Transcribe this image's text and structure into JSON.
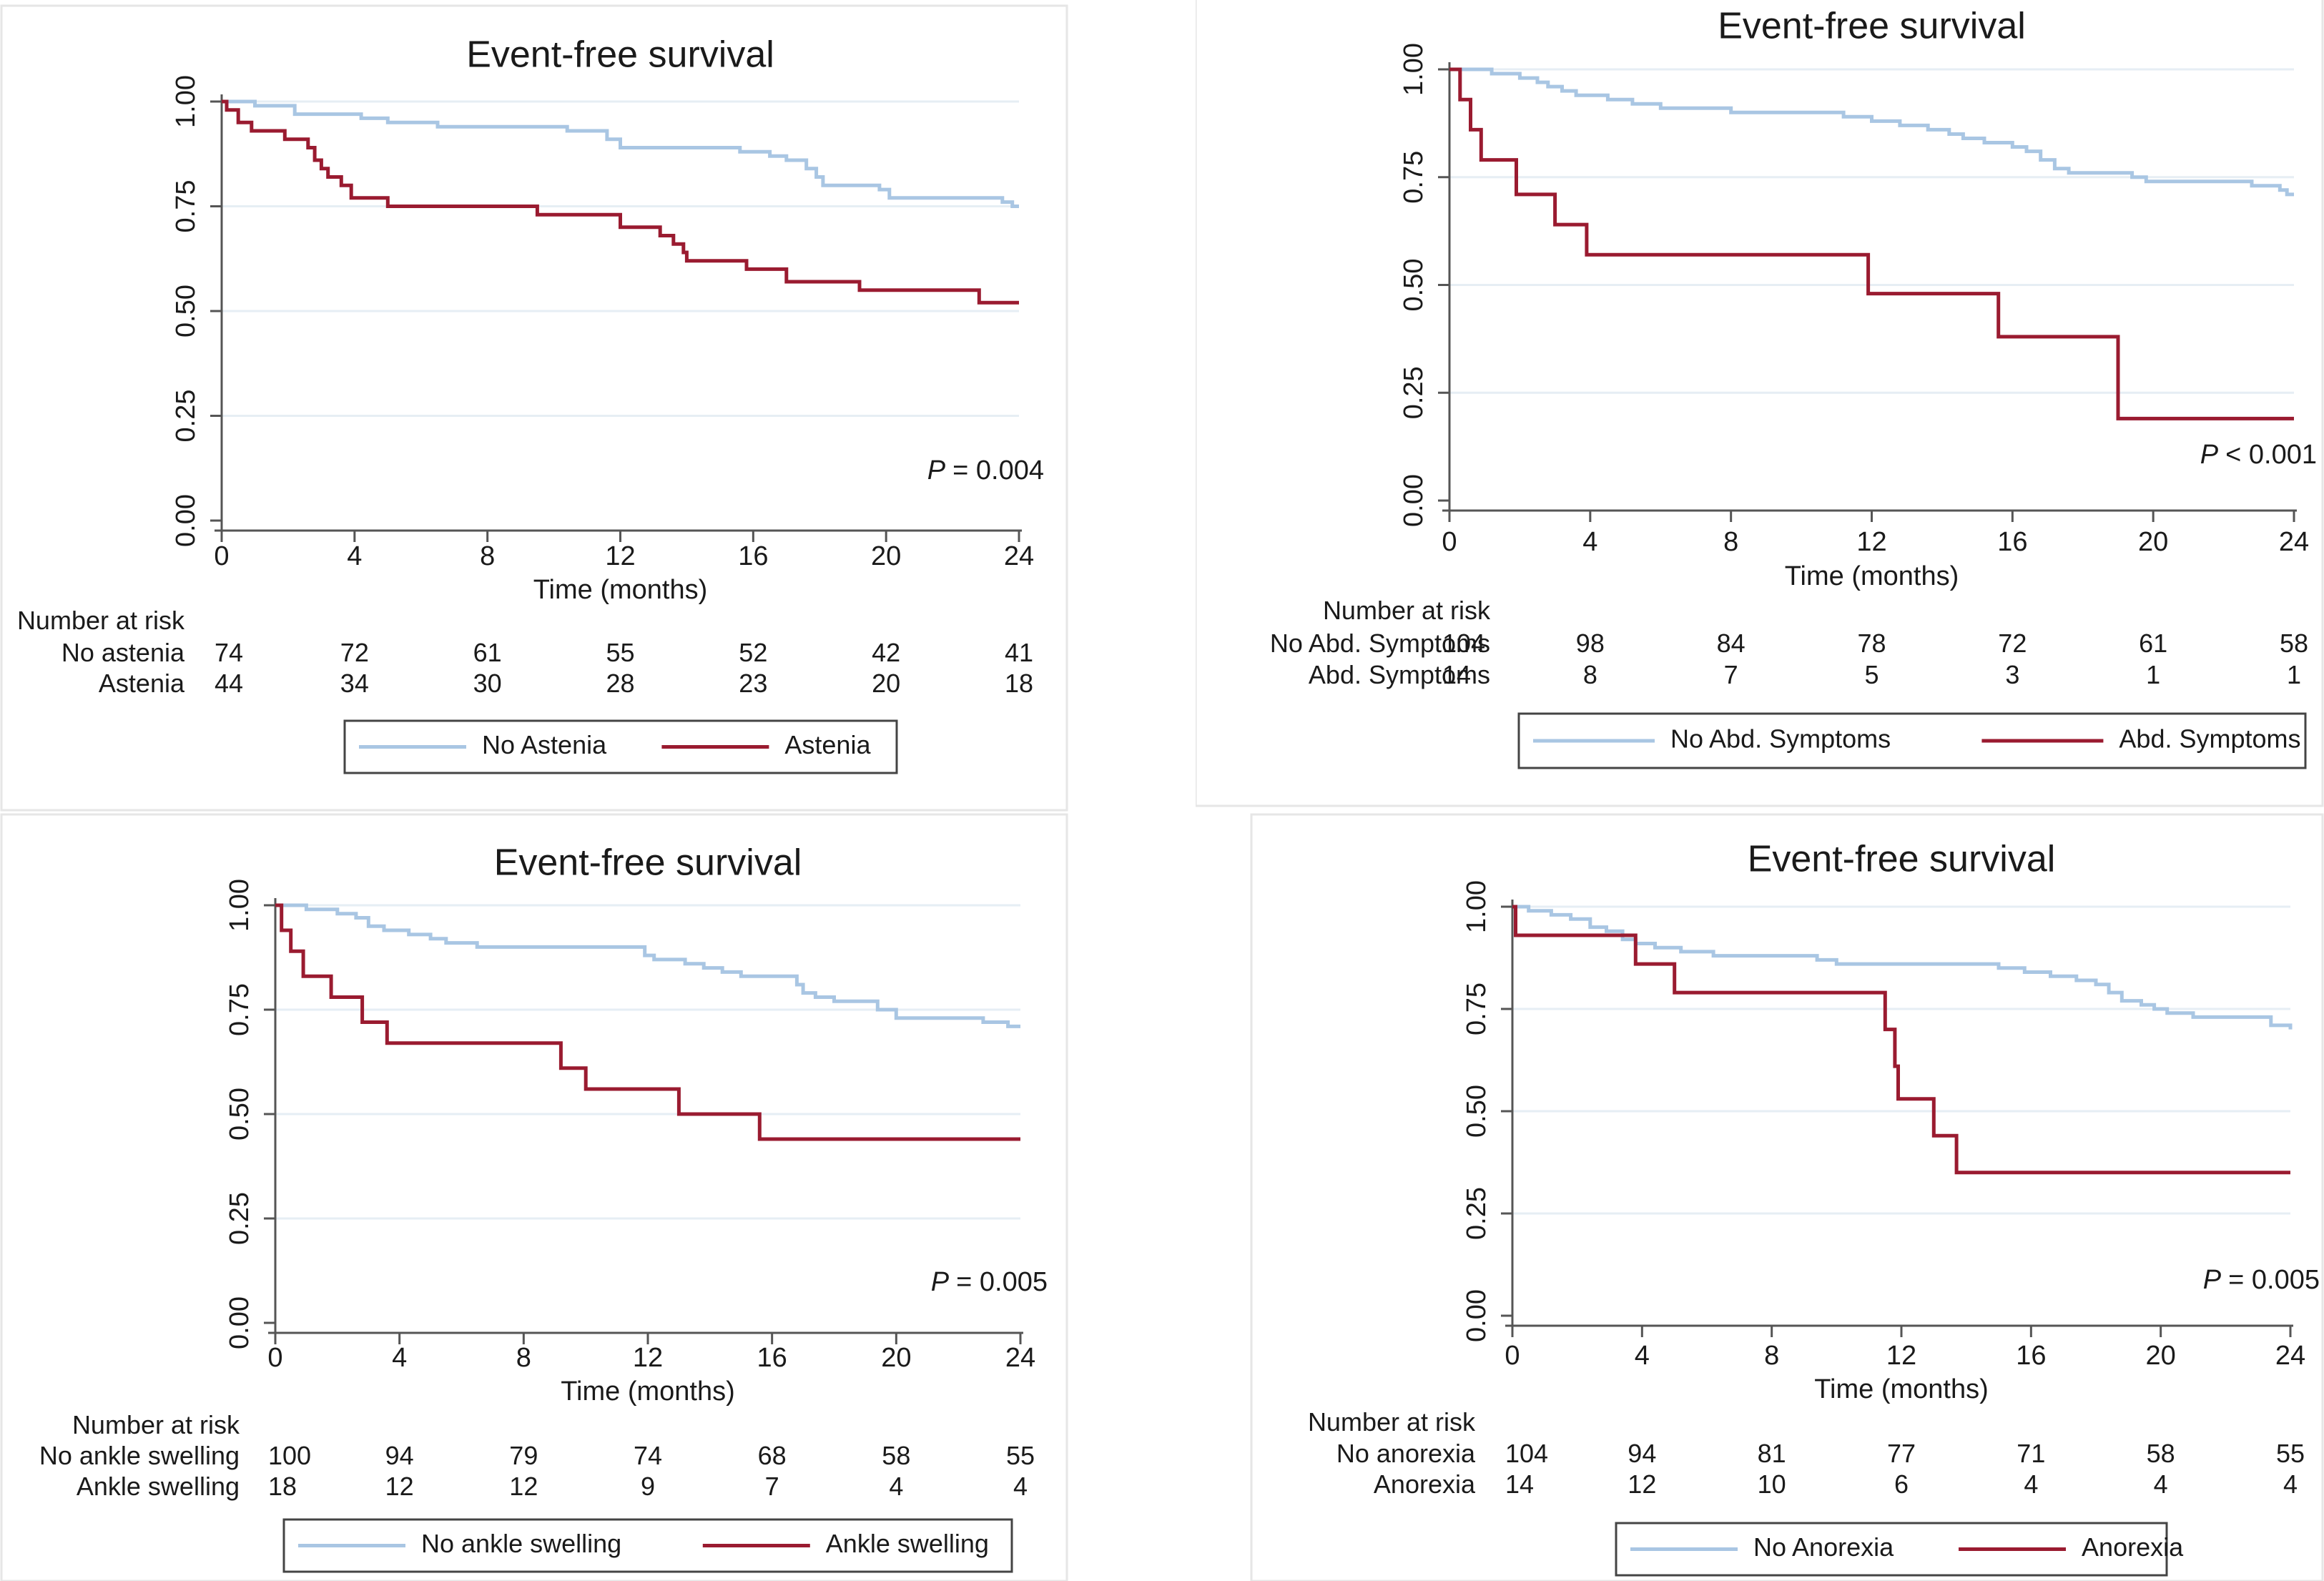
{
  "colors": {
    "no_group": "#A9C6E3",
    "group": "#9A1B30",
    "grid": "#E6EEF4",
    "axis": "#555555",
    "text": "#1a1a1a"
  },
  "chart_data": [
    {
      "type": "line",
      "title": "Event-free survival",
      "xlabel": "Time (months)",
      "ylabel": "",
      "xlim": [
        0,
        24
      ],
      "ylim": [
        0,
        1
      ],
      "xticks": [
        "0",
        "4",
        "8",
        "12",
        "16",
        "20",
        "24"
      ],
      "yticks": [
        "0.00",
        "0.25",
        "0.50",
        "0.75",
        "1.00"
      ],
      "p_symbol": "P",
      "p_rest": "= 0.004",
      "risk_header": "Number at risk",
      "series": [
        {
          "name": "No Astenia",
          "risk_label": "No astenia",
          "color_key": "no_group",
          "risk": [
            "74",
            "72",
            "61",
            "55",
            "52",
            "42",
            "41"
          ],
          "points": [
            [
              0,
              1.0
            ],
            [
              1.0,
              0.99
            ],
            [
              2.2,
              0.97
            ],
            [
              4.2,
              0.96
            ],
            [
              5.0,
              0.95
            ],
            [
              6.5,
              0.94
            ],
            [
              10.4,
              0.93
            ],
            [
              11.6,
              0.91
            ],
            [
              12.0,
              0.89
            ],
            [
              15.6,
              0.88
            ],
            [
              16.5,
              0.87
            ],
            [
              17.0,
              0.86
            ],
            [
              17.6,
              0.84
            ],
            [
              17.9,
              0.82
            ],
            [
              18.1,
              0.8
            ],
            [
              19.8,
              0.79
            ],
            [
              20.1,
              0.77
            ],
            [
              23.5,
              0.76
            ],
            [
              23.8,
              0.75
            ],
            [
              24.0,
              0.75
            ]
          ]
        },
        {
          "name": "Astenia",
          "risk_label": "Astenia",
          "color_key": "group",
          "risk": [
            "44",
            "34",
            "30",
            "28",
            "23",
            "20",
            "18"
          ],
          "points": [
            [
              0,
              1.0
            ],
            [
              0.15,
              0.98
            ],
            [
              0.5,
              0.95
            ],
            [
              0.9,
              0.93
            ],
            [
              1.9,
              0.91
            ],
            [
              2.6,
              0.89
            ],
            [
              2.8,
              0.86
            ],
            [
              3.0,
              0.84
            ],
            [
              3.2,
              0.82
            ],
            [
              3.6,
              0.8
            ],
            [
              3.9,
              0.77
            ],
            [
              5.0,
              0.75
            ],
            [
              8.4,
              0.75
            ],
            [
              9.5,
              0.73
            ],
            [
              12.0,
              0.7
            ],
            [
              13.2,
              0.68
            ],
            [
              13.6,
              0.66
            ],
            [
              13.9,
              0.64
            ],
            [
              14.0,
              0.62
            ],
            [
              15.8,
              0.6
            ],
            [
              17.0,
              0.57
            ],
            [
              19.2,
              0.55
            ],
            [
              22.8,
              0.52
            ],
            [
              24.0,
              0.52
            ]
          ]
        }
      ]
    },
    {
      "type": "line",
      "title": "Event-free survival",
      "xlabel": "Time (months)",
      "ylabel": "",
      "xlim": [
        0,
        24
      ],
      "ylim": [
        0,
        1
      ],
      "xticks": [
        "0",
        "4",
        "8",
        "12",
        "16",
        "20",
        "24"
      ],
      "yticks": [
        "0.00",
        "0.25",
        "0.50",
        "0.75",
        "1.00"
      ],
      "p_symbol": "P",
      "p_rest": "< 0.001",
      "risk_header": "Number at risk",
      "series": [
        {
          "name": "No Abd. Symptoms",
          "risk_label": "No Abd. Symptoms",
          "color_key": "no_group",
          "risk": [
            "104",
            "98",
            "84",
            "78",
            "72",
            "61",
            "58"
          ],
          "points": [
            [
              0,
              1.0
            ],
            [
              1.2,
              0.99
            ],
            [
              2.0,
              0.98
            ],
            [
              2.5,
              0.97
            ],
            [
              2.8,
              0.96
            ],
            [
              3.2,
              0.95
            ],
            [
              3.6,
              0.94
            ],
            [
              4.5,
              0.93
            ],
            [
              5.2,
              0.92
            ],
            [
              6.0,
              0.91
            ],
            [
              8.0,
              0.9
            ],
            [
              9.5,
              0.9
            ],
            [
              11.2,
              0.89
            ],
            [
              12.0,
              0.88
            ],
            [
              12.8,
              0.87
            ],
            [
              13.6,
              0.86
            ],
            [
              14.2,
              0.85
            ],
            [
              14.6,
              0.84
            ],
            [
              15.2,
              0.83
            ],
            [
              16.0,
              0.82
            ],
            [
              16.4,
              0.81
            ],
            [
              16.8,
              0.79
            ],
            [
              17.2,
              0.77
            ],
            [
              17.6,
              0.76
            ],
            [
              18.8,
              0.76
            ],
            [
              19.4,
              0.75
            ],
            [
              19.8,
              0.74
            ],
            [
              22.0,
              0.74
            ],
            [
              22.8,
              0.73
            ],
            [
              23.6,
              0.72
            ],
            [
              23.8,
              0.71
            ],
            [
              24.0,
              0.71
            ]
          ]
        },
        {
          "name": "Abd. Symptoms",
          "risk_label": "Abd. Symptoms",
          "color_key": "group",
          "risk": [
            "14",
            "8",
            "7",
            "5",
            "3",
            "1",
            "1"
          ],
          "points": [
            [
              0,
              1.0
            ],
            [
              0.3,
              0.93
            ],
            [
              0.6,
              0.86
            ],
            [
              0.9,
              0.79
            ],
            [
              1.9,
              0.71
            ],
            [
              3.0,
              0.64
            ],
            [
              3.9,
              0.57
            ],
            [
              11.9,
              0.57
            ],
            [
              11.9,
              0.48
            ],
            [
              15.6,
              0.48
            ],
            [
              15.6,
              0.38
            ],
            [
              19.0,
              0.38
            ],
            [
              19.0,
              0.19
            ],
            [
              24.0,
              0.19
            ]
          ]
        }
      ]
    },
    {
      "type": "line",
      "title": "Event-free survival",
      "xlabel": "Time (months)",
      "ylabel": "",
      "xlim": [
        0,
        24
      ],
      "ylim": [
        0,
        1
      ],
      "xticks": [
        "0",
        "4",
        "8",
        "12",
        "16",
        "20",
        "24"
      ],
      "yticks": [
        "0.00",
        "0.25",
        "0.50",
        "0.75",
        "1.00"
      ],
      "p_symbol": "P",
      "p_rest": "= 0.005",
      "risk_header": "Number at risk",
      "series": [
        {
          "name": "No ankle swelling",
          "risk_label": "No ankle swelling",
          "color_key": "no_group",
          "risk": [
            "100",
            "94",
            "79",
            "74",
            "68",
            "58",
            "55"
          ],
          "points": [
            [
              0,
              1.0
            ],
            [
              1.0,
              0.99
            ],
            [
              2.0,
              0.98
            ],
            [
              2.6,
              0.97
            ],
            [
              3.0,
              0.95
            ],
            [
              3.5,
              0.94
            ],
            [
              4.3,
              0.93
            ],
            [
              5.0,
              0.92
            ],
            [
              5.5,
              0.91
            ],
            [
              6.5,
              0.9
            ],
            [
              11.6,
              0.9
            ],
            [
              11.9,
              0.88
            ],
            [
              12.2,
              0.87
            ],
            [
              13.2,
              0.86
            ],
            [
              13.8,
              0.85
            ],
            [
              14.4,
              0.84
            ],
            [
              15.0,
              0.83
            ],
            [
              16.0,
              0.83
            ],
            [
              16.8,
              0.81
            ],
            [
              17.0,
              0.79
            ],
            [
              17.4,
              0.78
            ],
            [
              18.0,
              0.77
            ],
            [
              19.0,
              0.77
            ],
            [
              19.4,
              0.75
            ],
            [
              20.0,
              0.73
            ],
            [
              22.2,
              0.73
            ],
            [
              22.8,
              0.72
            ],
            [
              23.6,
              0.71
            ],
            [
              24.0,
              0.71
            ]
          ]
        },
        {
          "name": "Ankle swelling",
          "risk_label": "Ankle swelling",
          "color_key": "group",
          "risk": [
            "18",
            "12",
            "12",
            "9",
            "7",
            "4",
            "4"
          ],
          "points": [
            [
              0,
              1.0
            ],
            [
              0.2,
              0.94
            ],
            [
              0.5,
              0.89
            ],
            [
              0.9,
              0.83
            ],
            [
              1.8,
              0.78
            ],
            [
              2.8,
              0.72
            ],
            [
              3.6,
              0.67
            ],
            [
              9.2,
              0.67
            ],
            [
              9.2,
              0.61
            ],
            [
              10.0,
              0.61
            ],
            [
              10.0,
              0.56
            ],
            [
              13.0,
              0.56
            ],
            [
              13.0,
              0.5
            ],
            [
              15.6,
              0.5
            ],
            [
              15.6,
              0.44
            ],
            [
              24.0,
              0.44
            ]
          ]
        }
      ]
    },
    {
      "type": "line",
      "title": "Event-free survival",
      "xlabel": "Time (months)",
      "ylabel": "",
      "xlim": [
        0,
        24
      ],
      "ylim": [
        0,
        1
      ],
      "xticks": [
        "0",
        "4",
        "8",
        "12",
        "16",
        "20",
        "24"
      ],
      "yticks": [
        "0.00",
        "0.25",
        "0.50",
        "0.75",
        "1.00"
      ],
      "p_symbol": "P",
      "p_rest": "= 0.005",
      "risk_header": "Number at risk",
      "series": [
        {
          "name": "No Anorexia",
          "risk_label": "No anorexia",
          "color_key": "no_group",
          "risk": [
            "104",
            "94",
            "81",
            "77",
            "71",
            "58",
            "55"
          ],
          "points": [
            [
              0,
              1.0
            ],
            [
              0.5,
              0.99
            ],
            [
              1.2,
              0.98
            ],
            [
              1.8,
              0.97
            ],
            [
              2.4,
              0.95
            ],
            [
              2.9,
              0.94
            ],
            [
              3.4,
              0.92
            ],
            [
              3.8,
              0.91
            ],
            [
              4.4,
              0.9
            ],
            [
              5.2,
              0.89
            ],
            [
              6.2,
              0.88
            ],
            [
              8.0,
              0.88
            ],
            [
              9.4,
              0.87
            ],
            [
              10.0,
              0.86
            ],
            [
              14.6,
              0.86
            ],
            [
              15.0,
              0.85
            ],
            [
              15.8,
              0.84
            ],
            [
              16.6,
              0.83
            ],
            [
              17.4,
              0.82
            ],
            [
              18.0,
              0.81
            ],
            [
              18.4,
              0.79
            ],
            [
              18.8,
              0.77
            ],
            [
              19.4,
              0.76
            ],
            [
              19.8,
              0.75
            ],
            [
              20.2,
              0.74
            ],
            [
              21.0,
              0.73
            ],
            [
              22.6,
              0.73
            ],
            [
              23.4,
              0.71
            ],
            [
              24.0,
              0.7
            ]
          ]
        },
        {
          "name": "Anorexia",
          "risk_label": "Anorexia",
          "color_key": "group",
          "risk": [
            "14",
            "12",
            "10",
            "6",
            "4",
            "4",
            "4"
          ],
          "points": [
            [
              0,
              1.0
            ],
            [
              0.1,
              0.93
            ],
            [
              3.8,
              0.93
            ],
            [
              3.8,
              0.86
            ],
            [
              5.0,
              0.86
            ],
            [
              5.0,
              0.79
            ],
            [
              11.5,
              0.79
            ],
            [
              11.5,
              0.7
            ],
            [
              11.8,
              0.7
            ],
            [
              11.8,
              0.61
            ],
            [
              11.9,
              0.61
            ],
            [
              11.9,
              0.53
            ],
            [
              13.0,
              0.53
            ],
            [
              13.0,
              0.44
            ],
            [
              13.7,
              0.44
            ],
            [
              13.7,
              0.35
            ],
            [
              24.0,
              0.35
            ]
          ]
        }
      ]
    }
  ]
}
